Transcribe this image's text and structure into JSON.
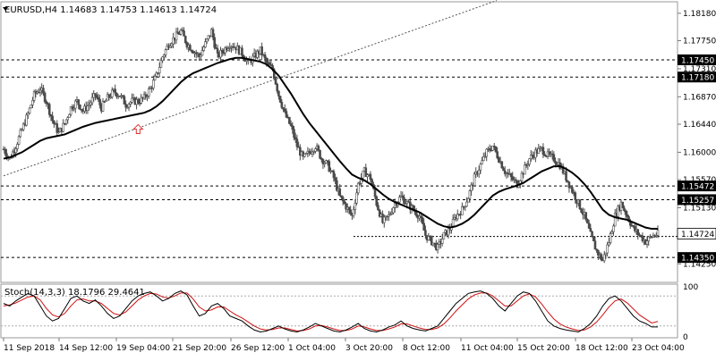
{
  "header": {
    "symbol_line": "EURUSD,H4  1.14683 1.14753 1.14613 1.14724"
  },
  "colors": {
    "candle": "#4a4a4a",
    "ma": "#000000",
    "stoch_main": "#000000",
    "stoch_signal": "#d01010",
    "hline": "#000000",
    "trendline": "#555555",
    "arrow": "#e03030",
    "grid": "#cfcfcf",
    "current_price_tag": "#ffffff"
  },
  "chart_data": [
    {
      "type": "candlestick",
      "title": "EURUSD,H4",
      "ohlc_text": "1.14683 1.14753 1.14613 1.14724",
      "ylim": [
        1.1396,
        1.1836
      ],
      "y_ticks": [
        "1.18180",
        "1.17750",
        "1.17310",
        "1.16870",
        "1.16440",
        "1.16000",
        "1.15570",
        "1.15130",
        "1.14700",
        "1.14250"
      ],
      "x_ticks": [
        "11 Sep 2018",
        "14 Sep 12:00",
        "19 Sep 04:00",
        "21 Sep 20:00",
        "26 Sep 12:00",
        "1 Oct 04:00",
        "3 Oct 20:00",
        "8 Oct 12:00",
        "11 Oct 04:00",
        "15 Oct 20:00",
        "18 Oct 12:00",
        "23 Oct 04:00"
      ],
      "horizontal_levels": [
        {
          "price": 1.1745,
          "label": "1.17450"
        },
        {
          "price": 1.1718,
          "label": "1.17180"
        },
        {
          "price": 1.15472,
          "label": "1.15472"
        },
        {
          "price": 1.15257,
          "label": "1.15257"
        },
        {
          "price": 1.1435,
          "label": "1.14350"
        }
      ],
      "support_line": {
        "price": 1.1468
      },
      "current_price": {
        "price": 1.14724,
        "label": "1.14724"
      },
      "trendline": {
        "start": [
          0,
          1.1563
        ],
        "end": [
          100,
          1.1838
        ]
      },
      "arrow_marker": {
        "index": 22,
        "price": 1.1635
      },
      "price_path": [
        1.1605,
        1.159,
        1.161,
        1.1635,
        1.166,
        1.169,
        1.17,
        1.168,
        1.165,
        1.163,
        1.1645,
        1.167,
        1.168,
        1.1665,
        1.1675,
        1.169,
        1.167,
        1.1685,
        1.1695,
        1.169,
        1.1675,
        1.168,
        1.168,
        1.1685,
        1.17,
        1.172,
        1.175,
        1.177,
        1.178,
        1.179,
        1.177,
        1.176,
        1.175,
        1.177,
        1.179,
        1.175,
        1.176,
        1.177,
        1.1765,
        1.1755,
        1.174,
        1.175,
        1.176,
        1.174,
        1.173,
        1.169,
        1.166,
        1.164,
        1.161,
        1.159,
        1.16,
        1.161,
        1.159,
        1.158,
        1.156,
        1.153,
        1.1515,
        1.15,
        1.155,
        1.157,
        1.156,
        1.152,
        1.149,
        1.15,
        1.152,
        1.153,
        1.152,
        1.151,
        1.15,
        1.147,
        1.146,
        1.145,
        1.147,
        1.148,
        1.15,
        1.151,
        1.153,
        1.156,
        1.158,
        1.16,
        1.161,
        1.159,
        1.157,
        1.156,
        1.155,
        1.157,
        1.159,
        1.16,
        1.1605,
        1.1595,
        1.159,
        1.158,
        1.156,
        1.154,
        1.152,
        1.15,
        1.147,
        1.1445,
        1.143,
        1.146,
        1.15,
        1.152,
        1.15,
        1.148,
        1.147,
        1.146,
        1.1468,
        1.1472
      ],
      "ma_path": [
        1.159,
        1.1592,
        1.1596,
        1.16,
        1.1606,
        1.1612,
        1.1618,
        1.1622,
        1.1624,
        1.1626,
        1.1628,
        1.1632,
        1.1636,
        1.164,
        1.1643,
        1.1646,
        1.1648,
        1.165,
        1.1652,
        1.1654,
        1.1656,
        1.1658,
        1.166,
        1.1662,
        1.1666,
        1.1672,
        1.168,
        1.169,
        1.17,
        1.171,
        1.1718,
        1.1724,
        1.1728,
        1.1732,
        1.1736,
        1.174,
        1.1743,
        1.1746,
        1.1748,
        1.1748,
        1.1746,
        1.1744,
        1.1742,
        1.1738,
        1.173,
        1.172,
        1.1706,
        1.1692,
        1.1676,
        1.166,
        1.1646,
        1.1634,
        1.1622,
        1.161,
        1.1598,
        1.1586,
        1.1575,
        1.1565,
        1.156,
        1.1556,
        1.155,
        1.1542,
        1.1534,
        1.1527,
        1.1522,
        1.1518,
        1.1514,
        1.151,
        1.1506,
        1.15,
        1.1494,
        1.1488,
        1.1484,
        1.1482,
        1.1484,
        1.1488,
        1.1494,
        1.1502,
        1.1512,
        1.1522,
        1.1532,
        1.1538,
        1.1542,
        1.1545,
        1.1548,
        1.1552,
        1.1558,
        1.1564,
        1.157,
        1.1574,
        1.1578,
        1.1578,
        1.1574,
        1.1568,
        1.156,
        1.155,
        1.1538,
        1.1524,
        1.151,
        1.1502,
        1.1498,
        1.1496,
        1.1494,
        1.149,
        1.1486,
        1.1482,
        1.148,
        1.148
      ]
    },
    {
      "type": "line",
      "title": "Stoch(14,3,3) 18.1796 29.4641",
      "ylim": [
        0,
        100
      ],
      "y_ticks": [
        "100",
        "0"
      ],
      "levels": [
        80,
        20
      ],
      "series": [
        {
          "values": [
            65,
            60,
            70,
            78,
            85,
            80,
            60,
            40,
            30,
            35,
            55,
            75,
            80,
            70,
            65,
            72,
            60,
            45,
            35,
            40,
            55,
            70,
            80,
            85,
            88,
            80,
            70,
            75,
            85,
            90,
            82,
            60,
            40,
            45,
            60,
            65,
            55,
            40,
            35,
            30,
            20,
            12,
            8,
            10,
            15,
            20,
            14,
            10,
            8,
            12,
            18,
            25,
            20,
            15,
            10,
            8,
            12,
            18,
            25,
            15,
            10,
            8,
            12,
            18,
            22,
            30,
            20,
            15,
            12,
            10,
            15,
            20,
            35,
            50,
            65,
            75,
            85,
            88,
            90,
            85,
            75,
            60,
            50,
            65,
            80,
            88,
            85,
            70,
            50,
            30,
            20,
            15,
            12,
            10,
            8,
            15,
            25,
            40,
            60,
            75,
            80,
            70,
            55,
            40,
            30,
            25,
            18,
            18
          ]
        },
        {
          "values": [
            60,
            62,
            66,
            72,
            78,
            80,
            72,
            55,
            42,
            38,
            45,
            60,
            72,
            74,
            70,
            70,
            65,
            55,
            45,
            42,
            48,
            60,
            72,
            80,
            85,
            84,
            78,
            76,
            80,
            86,
            86,
            74,
            58,
            50,
            52,
            58,
            58,
            50,
            42,
            36,
            28,
            20,
            14,
            12,
            13,
            16,
            16,
            13,
            10,
            11,
            14,
            20,
            21,
            18,
            14,
            11,
            11,
            14,
            20,
            18,
            14,
            11,
            11,
            14,
            18,
            24,
            24,
            20,
            16,
            13,
            13,
            16,
            24,
            36,
            50,
            62,
            74,
            82,
            86,
            86,
            80,
            70,
            60,
            60,
            70,
            80,
            84,
            78,
            64,
            48,
            34,
            24,
            18,
            14,
            11,
            12,
            18,
            28,
            42,
            58,
            70,
            74,
            66,
            54,
            42,
            34,
            26,
            29
          ]
        }
      ]
    }
  ]
}
